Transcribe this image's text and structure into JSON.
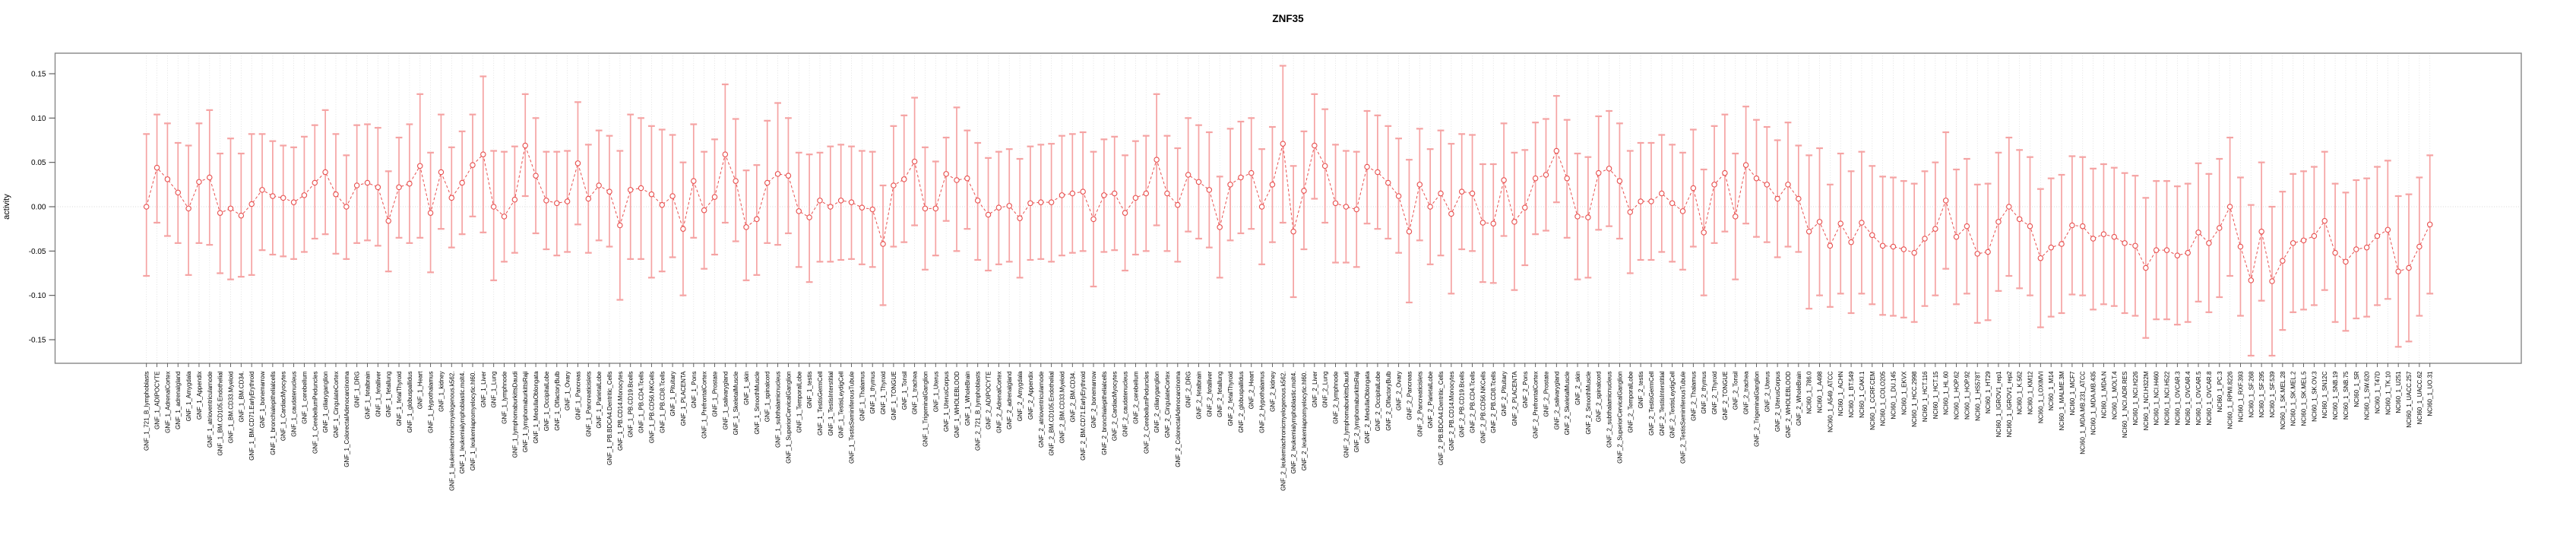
{
  "title": "ZNF35",
  "colors": {
    "series": "#e8504f",
    "errorbar": "#f5a3a3",
    "gridline": "#dcdcdc",
    "zero_line": "#d8d8d8",
    "axis_box": "#878787",
    "tick": "#555555",
    "text": "#000000"
  },
  "chart_data": {
    "type": "line",
    "subtype": "points-with-error-bars",
    "title": "ZNF35",
    "xlabel": "",
    "ylabel": "activity",
    "ylim": [
      -0.177,
      0.172
    ],
    "yticks": [
      0.15,
      0.1,
      0.05,
      0.0,
      -0.05,
      -0.1,
      -0.15
    ],
    "ytick_labels": [
      "0.15",
      "0.10",
      "0.05",
      "0.00",
      "-0.05",
      "-0.10",
      "-0.15"
    ],
    "grid": "vertical dotted line per category; horizontal dotted line at y=0",
    "legend_position": "none",
    "marker": "open-circle",
    "line_style": "dashed",
    "categories": [
      "GNF_1_721_B_lymphoblasts",
      "GNF_1_ADIPOCYTE",
      "GNF_1_AdrenalCortex",
      "GNF_1_adrenalgland",
      "GNF_1_Amygdala",
      "GNF_1_Appendix",
      "GNF_1_atrioventricularnode",
      "GNF_1_BM.CD105.Endothelial",
      "GNF_1_BM.CD33.Myeloid",
      "GNF_1_BM.CD34.",
      "GNF_1_BM.CD71.EarlyErythroid",
      "GNF_1_bonemarrow",
      "GNF_1_bronchialepithelialcells",
      "GNF_1_CardiacMyocytes",
      "GNF_1_caudatenucleus",
      "GNF_1_cerebellum",
      "GNF_1_CerebellumPeduncles",
      "GNF_1_ciliaryganglion",
      "GNF_1_CingulateCortex",
      "GNF_1_ColorectalAdenocarcinoma",
      "GNF_1_DRG",
      "GNF_1_fetalbrain",
      "GNF_1_fetalliver",
      "GNF_1_fetallung",
      "GNF_1_fetalThyroid",
      "GNF_1_globuspallidus",
      "GNF_1_Heart",
      "GNF_1_Hypothalamus",
      "GNF_1_kidney",
      "GNF_1_leukemiachronicmyelogenous.k562.",
      "GNF_1_leukemialymphoblastic.molt4.",
      "GNF_1_leukemiapromyelocytic.hl60.",
      "GNF_1_Liver",
      "GNF_1_Lung",
      "GNF_1_lymphnode",
      "GNF_1_lymphomaburkittsDaudi",
      "GNF_1_lymphomaburkittsRaji",
      "GNF_1_MedullaOblongata",
      "GNF_1_OccipitalLobe",
      "GNF_1_OlfactoryBulb",
      "GNF_1_Ovary",
      "GNF_1_Pancreas",
      "GNF_1_Pancreaticislets",
      "GNF_1_ParietalLobe",
      "GNF_1_PB.BDCA4.Dentritic_Cells",
      "GNF_1_PB.CD14.Monocytes",
      "GNF_1_PB.CD19.Bcells",
      "GNF_1_PB.CD4.Tcells",
      "GNF_1_PB.CD56.NKCells",
      "GNF_1_PB.CD8.Tcells",
      "GNF_1_Pituitary",
      "GNF_1_PLACENTA",
      "GNF_1_Pons",
      "GNF_1_PrefrontalCortex",
      "GNF_1_Prostate",
      "GNF_1_salivarygland",
      "GNF_1_SkeletalMuscle",
      "GNF_1_skin",
      "GNF_1_SmoothMuscle",
      "GNF_1_spinalcord",
      "GNF_1_subthalamicnucleus",
      "GNF_1_SuperiorCervicalGanglion",
      "GNF_1_TemporalLobe",
      "GNF_1_testis",
      "GNF_1_TestisGermCell",
      "GNF_1_TestisInterstitial",
      "GNF_1_TestisLeydigCell",
      "GNF_1_TestisSeminiferousTubule",
      "GNF_1_Thalamus",
      "GNF_1_thymus",
      "GNF_1_Thyroid",
      "GNF_1_TONGUE",
      "GNF_1_Tonsil",
      "GNF_1_trachea",
      "GNF_1_TrigeminalGanglion",
      "GNF_1_Uterus",
      "GNF_1_UterusCorpus",
      "GNF_1_WHOLEBLOOD",
      "GNF_1_WholeBrain",
      "GNF_2_721_B_lymphoblasts",
      "GNF_2_ADIPOCYTE",
      "GNF_2_AdrenalCortex",
      "GNF_2_adrenalgland",
      "GNF_2_Amygdala",
      "GNF_2_Appendix",
      "GNF_2_atrioventricularnode",
      "GNF_2_BM.CD105.Endothelial",
      "GNF_2_BM.CD33.Myeloid",
      "GNF_2_BM.CD34.",
      "GNF_2_BM.CD71.EarlyErythroid",
      "GNF_2_bonemarrow",
      "GNF_2_bronchialepithelialcells",
      "GNF_2_CardiacMyocytes",
      "GNF_2_caudatenucleus",
      "GNF_2_cerebellum",
      "GNF_2_CerebellumPeduncles",
      "GNF_2_ciliaryganglion",
      "GNF_2_CingulateCortex",
      "GNF_2_ColorectalAdenocarcinoma",
      "GNF_2_DRG",
      "GNF_2_fetalbrain",
      "GNF_2_fetalliver",
      "GNF_2_fetallung",
      "GNF_2_fetalThyroid",
      "GNF_2_globuspallidus",
      "GNF_2_Heart",
      "GNF_2_Hypothalamus",
      "GNF_2_kidney",
      "GNF_2_leukemiachronicmyelogenous.k562.",
      "GNF_2_leukemialymphoblastic.molt4.",
      "GNF_2_leukemiapromyelocytic.hl60.",
      "GNF_2_Liver",
      "GNF_2_Lung",
      "GNF_2_lymphnode",
      "GNF_2_lymphomaburkittsDaudi",
      "GNF_2_lymphomaburkittsRaji",
      "GNF_2_MedullaOblongata",
      "GNF_2_OccipitalLobe",
      "GNF_2_OlfactoryBulb",
      "GNF_2_Ovary",
      "GNF_2_Pancreas",
      "GNF_2_Pancreaticislets",
      "GNF_2_ParietalLobe",
      "GNF_2_PB.BDCA4.Dentritic_Cells",
      "GNF_2_PB.CD14.Monocytes",
      "GNF_2_PB.CD19.Bcells",
      "GNF_2_PB.CD4.Tcells",
      "GNF_2_PB.CD56.NKCells",
      "GNF_2_PB.CD8.Tcells",
      "GNF_2_Pituitary",
      "GNF_2_PLACENTA",
      "GNF_2_Pons",
      "GNF_2_PrefrontalCortex",
      "GNF_2_Prostate",
      "GNF_2_salivarygland",
      "GNF_2_SkeletalMuscle",
      "GNF_2_skin",
      "GNF_2_SmoothMuscle",
      "GNF_2_spinalcord",
      "GNF_2_subthalamicnucleus",
      "GNF_2_SuperiorCervicalGanglion",
      "GNF_2_TemporalLobe",
      "GNF_2_testis",
      "GNF_2_TestisGermCell",
      "GNF_2_TestisInterstitial",
      "GNF_2_TestisLeydigCell",
      "GNF_2_TestisSeminiferousTubule",
      "GNF_2_Thalamus",
      "GNF_2_thymus",
      "GNF_2_Thyroid",
      "GNF_2_TONGUE",
      "GNF_2_Tonsil",
      "GNF_2_trachea",
      "GNF_2_TrigeminalGanglion",
      "GNF_2_Uterus",
      "GNF_2_UterusCorpus",
      "GNF_2_WHOLEBLOOD",
      "GNF_2_WholeBrain",
      "NCI60_1_786.0",
      "NCI60_1_A498",
      "NCI60_1_A549_ATCC",
      "NCI60_1_ACHN",
      "NCI60_1_BT.549",
      "NCI60_1_CAKI.1",
      "NCI60_1_CCRF.CEM",
      "NCI60_1_COLO205",
      "NCI60_1_DU.145",
      "NCI60_1_EKVX",
      "NCI60_1_HCC.2998",
      "NCI60_1_HCT.116",
      "NCI60_1_HCT.15",
      "NCI60_1_HL.60",
      "NCI60_1_HOP.62",
      "NCI60_1_HOP.92",
      "NCI60_1_HS578T",
      "NCI60_1_HT29",
      "NCI60_1_IGROV1_rep1",
      "NCI60_1_IGROV1_rep2",
      "NCI60_1_K.562",
      "NCI60_1_KM12",
      "NCI60_1_LOXIMVI",
      "NCI60_1_M14",
      "NCI60_1_MALME.3M",
      "NCI60_1_MCF7",
      "NCI60_1_MDA.MB.231_ATCC",
      "NCI60_1_MDA.MB.435",
      "NCI60_1_MDA.N",
      "NCI60_1_MOLT.4",
      "NCI60_1_NCI.ADR.RES",
      "NCI60_1_NCI.H226",
      "NCI60_1_NCI.H322M",
      "NCI60_1_NCI.H460",
      "NCI60_1_NCI.H522",
      "NCI60_1_OVCAR.3",
      "NCI60_1_OVCAR.4",
      "NCI60_1_OVCAR.5",
      "NCI60_1_OVCAR.8",
      "NCI60_1_PC.3",
      "NCI60_1_RPMI.8226",
      "NCI60_1_RXF.393",
      "NCI60_1_SF.268",
      "NCI60_1_SF.295",
      "NCI60_1_SF.539",
      "NCI60_1_SK.MEL.28",
      "NCI60_1_SK.MEL.2",
      "NCI60_1_SK.MEL.5",
      "NCI60_1_SK.OV.3",
      "NCI60_1_SN12C",
      "NCI60_1_SNB.19",
      "NCI60_1_SNB.75",
      "NCI60_1_SR",
      "NCI60_1_SW.620",
      "NCI60_1_T47D",
      "NCI60_1_TK.10",
      "NCI60_1_U251",
      "NCI60_1_UACC.257",
      "NCI60_1_UACC.62",
      "NCI60_1_UO.31"
    ],
    "values": [
      0.0,
      0.044,
      0.031,
      0.016,
      -0.002,
      0.028,
      0.033,
      -0.007,
      -0.002,
      -0.01,
      0.003,
      0.019,
      0.012,
      0.01,
      0.005,
      0.013,
      0.027,
      0.039,
      0.014,
      0.0,
      0.024,
      0.027,
      0.022,
      -0.016,
      0.022,
      0.026,
      0.046,
      -0.007,
      0.039,
      0.01,
      0.027,
      0.047,
      0.059,
      0.0,
      -0.011,
      0.008,
      0.069,
      0.035,
      0.007,
      0.004,
      0.006,
      0.049,
      0.009,
      0.024,
      0.017,
      -0.021,
      0.019,
      0.021,
      0.014,
      0.002,
      0.012,
      -0.025,
      0.029,
      -0.004,
      0.011,
      0.059,
      0.029,
      -0.023,
      -0.014,
      0.027,
      0.037,
      0.035,
      -0.005,
      -0.012,
      0.007,
      0.0,
      0.007,
      0.005,
      -0.001,
      -0.003,
      -0.042,
      0.024,
      0.031,
      0.051,
      -0.002,
      -0.002,
      0.037,
      0.03,
      0.032,
      0.007,
      -0.009,
      -0.001,
      0.001,
      -0.013,
      0.004,
      0.005,
      0.005,
      0.013,
      0.015,
      0.017,
      -0.014,
      0.013,
      0.015,
      -0.007,
      0.01,
      0.015,
      0.053,
      0.015,
      0.002,
      0.036,
      0.028,
      0.019,
      -0.023,
      0.025,
      0.033,
      0.038,
      0.0,
      0.025,
      0.071,
      -0.028,
      0.018,
      0.069,
      0.046,
      0.004,
      0.0,
      -0.003,
      0.045,
      0.039,
      0.027,
      0.012,
      -0.028,
      0.025,
      0.0,
      0.015,
      -0.008,
      0.017,
      0.015,
      -0.018,
      -0.019,
      0.03,
      -0.017,
      -0.001,
      0.032,
      0.036,
      0.063,
      0.032,
      -0.011,
      -0.012,
      0.038,
      0.043,
      0.029,
      -0.006,
      0.006,
      0.006,
      0.015,
      0.004,
      -0.005,
      0.021,
      -0.029,
      0.025,
      0.038,
      -0.011,
      0.047,
      0.032,
      0.025,
      0.009,
      0.025,
      0.009,
      -0.028,
      -0.017,
      -0.044,
      -0.019,
      -0.04,
      -0.018,
      -0.032,
      -0.044,
      -0.045,
      -0.048,
      -0.052,
      -0.036,
      -0.025,
      0.007,
      -0.034,
      -0.022,
      -0.053,
      -0.051,
      -0.017,
      0.0,
      -0.014,
      -0.022,
      -0.058,
      -0.046,
      -0.042,
      -0.021,
      -0.022,
      -0.036,
      -0.031,
      -0.034,
      -0.041,
      -0.044,
      -0.069,
      -0.049,
      -0.049,
      -0.055,
      -0.052,
      -0.029,
      -0.041,
      -0.024,
      0.0,
      -0.045,
      -0.083,
      -0.028,
      -0.084,
      -0.061,
      -0.041,
      -0.038,
      -0.033,
      -0.016,
      -0.052,
      -0.062,
      -0.048,
      -0.046,
      -0.033,
      -0.026,
      -0.073,
      -0.069,
      -0.045,
      -0.02
    ],
    "lower": [
      -0.078,
      -0.018,
      -0.033,
      -0.041,
      -0.077,
      -0.041,
      -0.043,
      -0.075,
      -0.082,
      -0.079,
      -0.077,
      -0.049,
      -0.054,
      -0.056,
      -0.059,
      -0.051,
      -0.036,
      -0.031,
      -0.053,
      -0.059,
      -0.041,
      -0.038,
      -0.044,
      -0.073,
      -0.035,
      -0.041,
      -0.035,
      -0.074,
      -0.025,
      -0.046,
      -0.031,
      -0.011,
      -0.029,
      -0.083,
      -0.062,
      -0.052,
      0.012,
      -0.03,
      -0.048,
      -0.055,
      -0.051,
      -0.02,
      -0.052,
      -0.038,
      -0.045,
      -0.105,
      -0.059,
      -0.059,
      -0.08,
      -0.073,
      -0.057,
      -0.1,
      -0.035,
      -0.07,
      -0.054,
      -0.018,
      -0.039,
      -0.083,
      -0.077,
      -0.041,
      -0.043,
      -0.03,
      -0.068,
      -0.085,
      -0.062,
      -0.062,
      -0.06,
      -0.059,
      -0.065,
      -0.068,
      -0.111,
      -0.045,
      -0.04,
      -0.021,
      -0.071,
      -0.055,
      -0.016,
      -0.05,
      -0.025,
      -0.06,
      -0.072,
      -0.065,
      -0.062,
      -0.08,
      -0.06,
      -0.059,
      -0.062,
      -0.055,
      -0.052,
      -0.05,
      -0.09,
      -0.051,
      -0.049,
      -0.072,
      -0.054,
      -0.05,
      -0.021,
      -0.05,
      -0.062,
      -0.028,
      -0.036,
      -0.046,
      -0.08,
      -0.038,
      -0.03,
      -0.025,
      -0.065,
      -0.04,
      -0.018,
      -0.102,
      -0.048,
      0.009,
      -0.018,
      -0.063,
      -0.063,
      -0.068,
      -0.019,
      -0.025,
      -0.036,
      -0.052,
      -0.108,
      -0.038,
      -0.065,
      -0.055,
      -0.098,
      -0.048,
      -0.05,
      -0.085,
      -0.086,
      -0.033,
      -0.094,
      -0.066,
      -0.031,
      -0.027,
      0.005,
      -0.035,
      -0.082,
      -0.08,
      -0.026,
      -0.022,
      -0.036,
      -0.075,
      -0.06,
      -0.06,
      -0.051,
      -0.062,
      -0.071,
      -0.045,
      -0.1,
      -0.041,
      -0.028,
      -0.082,
      -0.019,
      -0.034,
      -0.04,
      -0.057,
      -0.045,
      -0.051,
      -0.115,
      -0.1,
      -0.113,
      -0.098,
      -0.12,
      -0.098,
      -0.11,
      -0.122,
      -0.123,
      -0.125,
      -0.13,
      -0.112,
      -0.1,
      -0.07,
      -0.11,
      -0.098,
      -0.131,
      -0.128,
      -0.095,
      -0.078,
      -0.092,
      -0.1,
      -0.136,
      -0.124,
      -0.12,
      -0.099,
      -0.1,
      -0.116,
      -0.11,
      -0.112,
      -0.12,
      -0.123,
      -0.148,
      -0.127,
      -0.127,
      -0.133,
      -0.13,
      -0.107,
      -0.119,
      -0.102,
      -0.078,
      -0.123,
      -0.168,
      -0.106,
      -0.168,
      -0.139,
      -0.119,
      -0.116,
      -0.111,
      -0.094,
      -0.13,
      -0.14,
      -0.126,
      -0.124,
      -0.111,
      -0.104,
      -0.158,
      -0.152,
      -0.123,
      -0.098
    ],
    "upper": [
      0.082,
      0.104,
      0.094,
      0.072,
      0.069,
      0.094,
      0.109,
      0.06,
      0.077,
      0.06,
      0.082,
      0.082,
      0.074,
      0.069,
      0.067,
      0.079,
      0.092,
      0.109,
      0.082,
      0.058,
      0.092,
      0.093,
      0.089,
      0.04,
      0.078,
      0.093,
      0.127,
      0.061,
      0.104,
      0.067,
      0.085,
      0.104,
      0.147,
      0.063,
      0.062,
      0.068,
      0.127,
      0.1,
      0.062,
      0.062,
      0.063,
      0.118,
      0.07,
      0.086,
      0.08,
      0.063,
      0.104,
      0.1,
      0.091,
      0.087,
      0.081,
      0.05,
      0.093,
      0.062,
      0.076,
      0.138,
      0.099,
      0.041,
      0.047,
      0.097,
      0.117,
      0.1,
      0.061,
      0.059,
      0.061,
      0.068,
      0.07,
      0.068,
      0.063,
      0.062,
      0.024,
      0.091,
      0.103,
      0.123,
      0.067,
      0.051,
      0.078,
      0.112,
      0.086,
      0.072,
      0.055,
      0.062,
      0.065,
      0.054,
      0.068,
      0.07,
      0.071,
      0.08,
      0.082,
      0.084,
      0.062,
      0.076,
      0.079,
      0.058,
      0.074,
      0.08,
      0.127,
      0.08,
      0.066,
      0.1,
      0.092,
      0.084,
      0.034,
      0.088,
      0.096,
      0.1,
      0.065,
      0.09,
      0.159,
      0.046,
      0.085,
      0.127,
      0.11,
      0.07,
      0.063,
      0.062,
      0.108,
      0.103,
      0.091,
      0.077,
      0.053,
      0.088,
      0.065,
      0.086,
      0.071,
      0.082,
      0.081,
      0.048,
      0.048,
      0.094,
      0.061,
      0.064,
      0.095,
      0.099,
      0.125,
      0.098,
      0.06,
      0.056,
      0.102,
      0.108,
      0.094,
      0.063,
      0.072,
      0.072,
      0.081,
      0.07,
      0.061,
      0.087,
      0.042,
      0.091,
      0.104,
      0.06,
      0.113,
      0.098,
      0.09,
      0.075,
      0.095,
      0.069,
      0.058,
      0.066,
      0.025,
      0.06,
      0.04,
      0.062,
      0.046,
      0.034,
      0.033,
      0.029,
      0.026,
      0.04,
      0.05,
      0.084,
      0.042,
      0.054,
      0.025,
      0.026,
      0.061,
      0.078,
      0.064,
      0.056,
      0.02,
      0.032,
      0.036,
      0.057,
      0.056,
      0.043,
      0.048,
      0.044,
      0.038,
      0.035,
      0.01,
      0.029,
      0.029,
      0.023,
      0.026,
      0.049,
      0.037,
      0.054,
      0.078,
      0.033,
      0.002,
      0.05,
      0.0,
      0.017,
      0.037,
      0.04,
      0.045,
      0.062,
      0.026,
      0.016,
      0.03,
      0.032,
      0.045,
      0.052,
      0.012,
      0.014,
      0.033,
      0.058
    ]
  }
}
